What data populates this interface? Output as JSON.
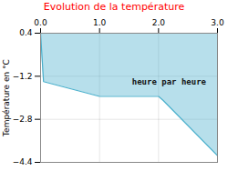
{
  "chart_data": {
    "type": "area",
    "title": "Evolution de la température",
    "ylabel": "Température en °C",
    "x": [
      0,
      0.05,
      1.0,
      2.0,
      2.08,
      3.0
    ],
    "values": [
      0.4,
      -1.4,
      -1.95,
      -1.95,
      -2.1,
      -4.15
    ],
    "fill_top": 0.4,
    "color": "#4ab0cc",
    "xlim": [
      0,
      3
    ],
    "xticks": [
      0,
      1,
      2,
      3
    ],
    "ylim": [
      -4.4,
      0.4
    ],
    "yticks": [
      0.4,
      -1.2,
      -2.8,
      -4.4
    ],
    "grid": true,
    "annotations": [
      {
        "text": "heure par heure",
        "x": 1.55,
        "y": -1.3
      }
    ]
  }
}
